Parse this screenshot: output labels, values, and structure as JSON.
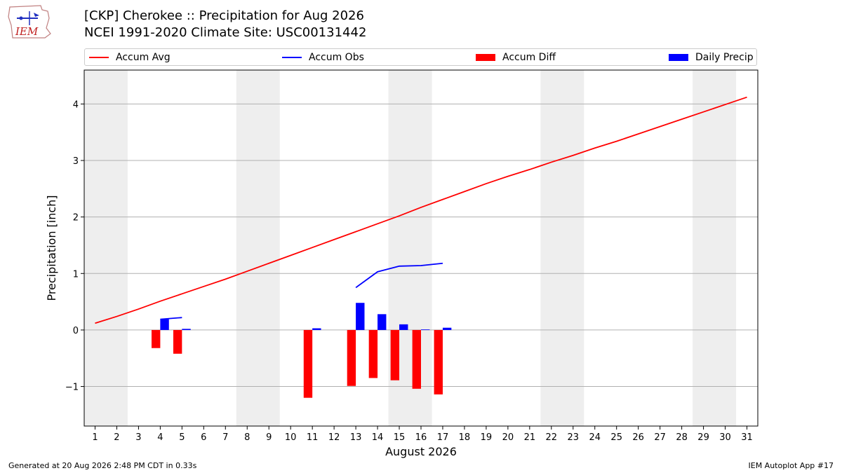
{
  "header": {
    "logo_text": "IEM",
    "title_line1": "[CKP] Cherokee :: Precipitation for Aug 2026",
    "title_line2": "NCEI 1991-2020 Climate Site: USC00131442"
  },
  "footer": {
    "left": "Generated at 20 Aug 2026 2:48 PM CDT in 0.33s",
    "right": "IEM Autoplot App #17"
  },
  "colors": {
    "avg": "#ff0000",
    "obs": "#0000ff",
    "diff": "#ff0000",
    "daily": "#0000ff",
    "weekend_band": "#eeeeee",
    "grid": "#b0b0b0"
  },
  "chart_data": {
    "type": "bar",
    "xlabel": "August 2026",
    "ylabel": "Precipitation [inch]",
    "xlim": [
      0.5,
      31.5
    ],
    "ylim": [
      -1.7,
      4.6
    ],
    "grid": true,
    "legend_position": "top",
    "x_ticks": [
      1,
      2,
      3,
      4,
      5,
      6,
      7,
      8,
      9,
      10,
      11,
      12,
      13,
      14,
      15,
      16,
      17,
      18,
      19,
      20,
      21,
      22,
      23,
      24,
      25,
      26,
      27,
      28,
      29,
      30,
      31
    ],
    "y_ticks": [
      -1,
      0,
      1,
      2,
      3,
      4
    ],
    "y_tick_labels": [
      "−1",
      "0",
      "1",
      "2",
      "3",
      "4"
    ],
    "weekend_bands": [
      [
        0.5,
        2.5
      ],
      [
        7.5,
        9.5
      ],
      [
        14.5,
        16.5
      ],
      [
        21.5,
        23.5
      ],
      [
        28.5,
        30.5
      ]
    ],
    "legend": [
      "Accum Avg",
      "Accum Obs",
      "Accum Diff",
      "Daily Precip"
    ],
    "series": [
      {
        "name": "Accum Avg",
        "kind": "line",
        "x": [
          1,
          2,
          3,
          4,
          5,
          6,
          7,
          8,
          9,
          10,
          11,
          12,
          13,
          14,
          15,
          16,
          17,
          18,
          19,
          20,
          21,
          22,
          23,
          24,
          25,
          26,
          27,
          28,
          29,
          30,
          31
        ],
        "values": [
          0.12,
          0.24,
          0.37,
          0.51,
          0.64,
          0.77,
          0.9,
          1.04,
          1.18,
          1.32,
          1.46,
          1.6,
          1.74,
          1.88,
          2.02,
          2.17,
          2.31,
          2.45,
          2.59,
          2.72,
          2.84,
          2.97,
          3.09,
          3.22,
          3.34,
          3.47,
          3.6,
          3.73,
          3.86,
          3.99,
          4.12
        ]
      },
      {
        "name": "Accum Obs",
        "kind": "line",
        "segments": [
          {
            "x": [
              4,
              5
            ],
            "values": [
              0.19,
              0.22
            ]
          },
          {
            "x": [
              13,
              14,
              15,
              16,
              17
            ],
            "values": [
              0.75,
              1.03,
              1.13,
              1.14,
              1.18
            ]
          }
        ]
      },
      {
        "name": "Accum Diff",
        "kind": "bar",
        "x": [
          4,
          5,
          11,
          13,
          14,
          15,
          16,
          17
        ],
        "values": [
          -0.32,
          -0.42,
          -1.2,
          -0.99,
          -0.85,
          -0.89,
          -1.04,
          -1.14
        ]
      },
      {
        "name": "Daily Precip",
        "kind": "bar",
        "x": [
          4,
          5,
          11,
          13,
          14,
          15,
          16,
          17
        ],
        "values": [
          0.19,
          0.02,
          0.03,
          0.48,
          0.28,
          0.1,
          0.01,
          0.04
        ]
      }
    ]
  }
}
